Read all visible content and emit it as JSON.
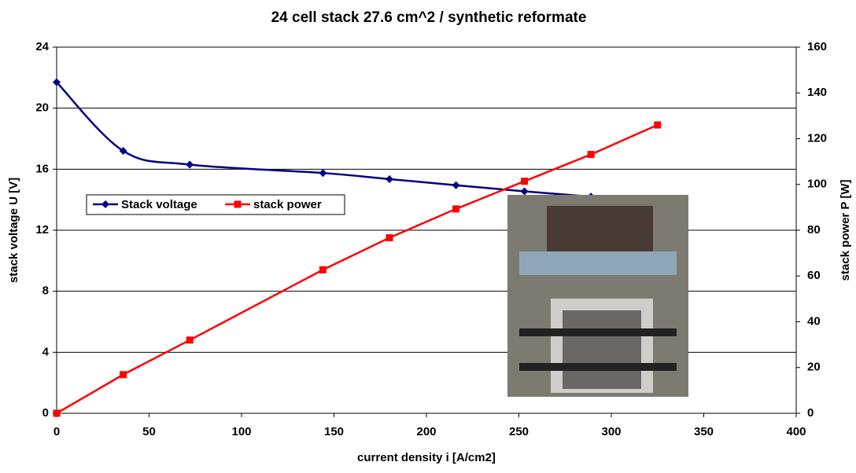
{
  "chart_data": {
    "type": "line",
    "title": "24 cell stack 27.6 cm^2 / synthetic reformate",
    "x_label": "current density i [A/cm2]",
    "y_label": "stack voltage U [V]",
    "y2_label": "stack power P [W]",
    "xlim": [
      0,
      400
    ],
    "xticks": [
      0,
      50,
      100,
      150,
      200,
      250,
      300,
      350,
      400
    ],
    "ylim": [
      0,
      24
    ],
    "yticks": [
      0,
      4,
      8,
      12,
      16,
      20,
      24
    ],
    "y2lim": [
      0,
      160
    ],
    "y2ticks": [
      0,
      20,
      40,
      60,
      80,
      100,
      120,
      140,
      160
    ],
    "grid": true,
    "legend": "left",
    "series": [
      {
        "name": "Stack voltage",
        "color": "#000080",
        "marker": "diamond",
        "smooth": true,
        "x": [
          0,
          36,
          72,
          144,
          180,
          216,
          253,
          289
        ],
        "values": [
          21.7,
          17.2,
          16.3,
          15.75,
          15.35,
          14.95,
          14.55,
          14.2
        ]
      },
      {
        "name": "stack power",
        "color": "#ff0000",
        "marker": "square",
        "axis": "y2",
        "x": [
          0,
          36,
          72,
          144,
          180,
          216,
          253,
          289,
          325
        ],
        "values": [
          0,
          16.9,
          32,
          62.7,
          76.7,
          89.3,
          101.4,
          113.1,
          126
        ]
      }
    ]
  }
}
